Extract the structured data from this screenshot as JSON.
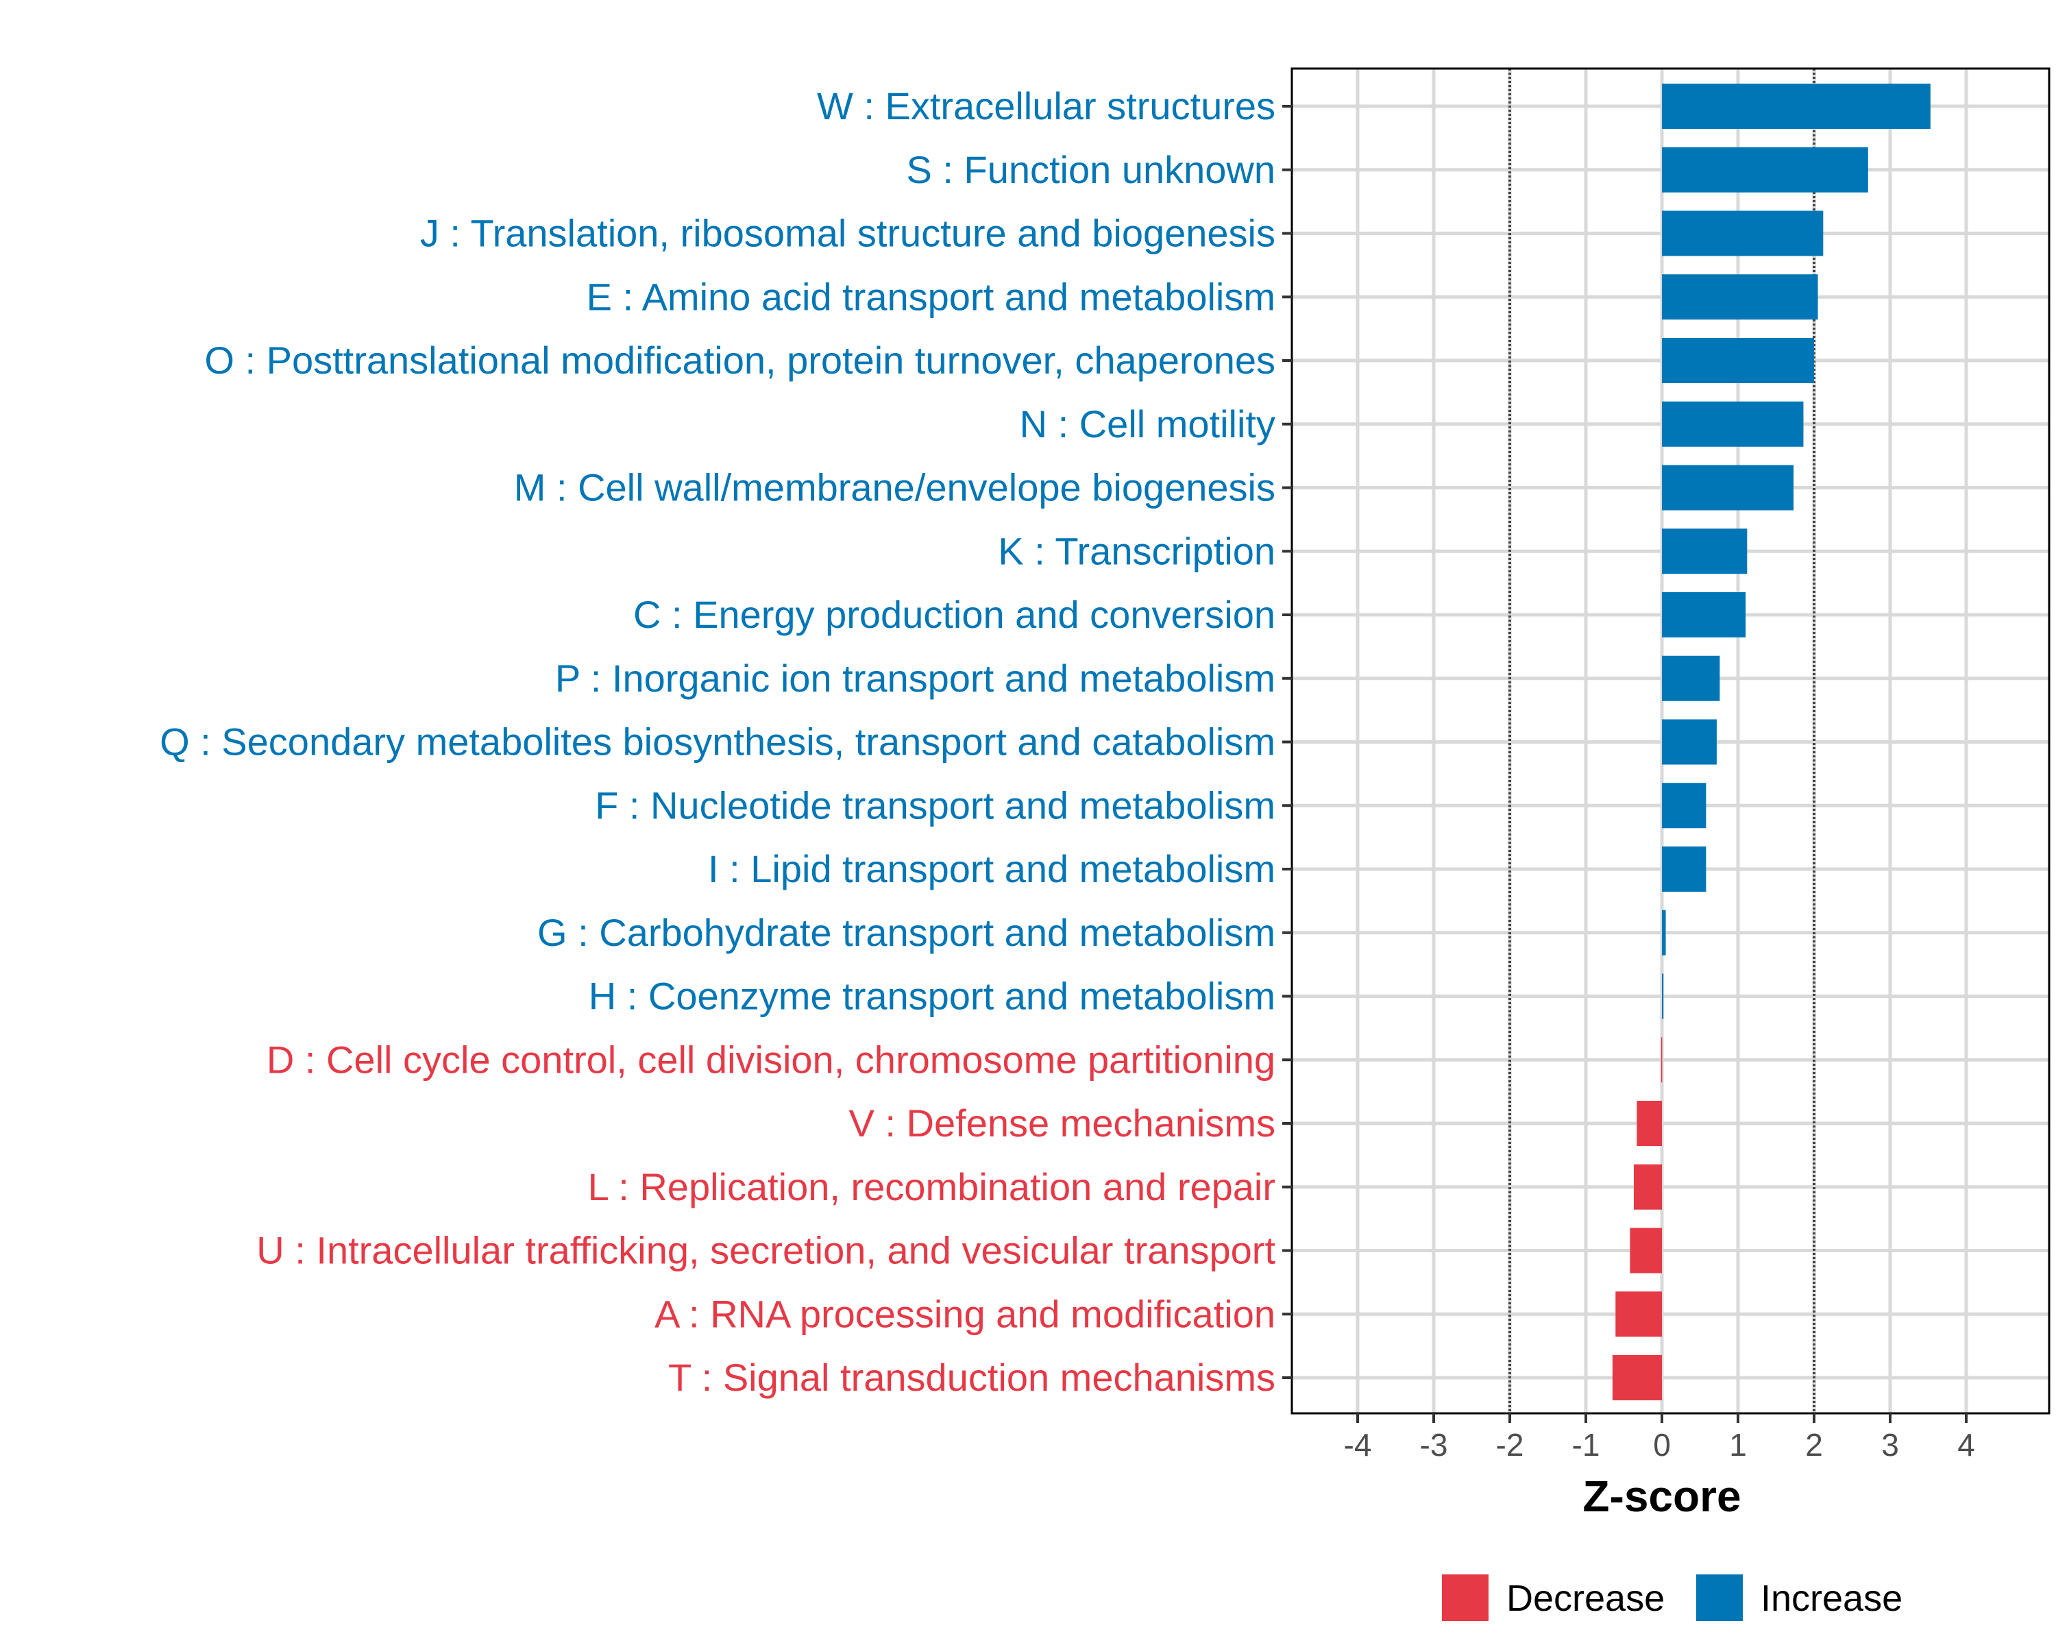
{
  "chart_data": {
    "type": "bar",
    "orientation": "horizontal",
    "title": "",
    "xlabel": "Z-score",
    "ylabel": "",
    "xlim": [
      -5,
      5
    ],
    "xticks": [
      -4,
      -3,
      -2,
      -1,
      0,
      1,
      2,
      3,
      4
    ],
    "xtick_labels": [
      "-4",
      "-3",
      "-2",
      "-1",
      "0",
      "1",
      "2",
      "3",
      "4"
    ],
    "reference_lines": [
      -2,
      2
    ],
    "grid": true,
    "categories": [
      "W : Extracellular structures",
      "S : Function unknown",
      "J : Translation, ribosomal structure and biogenesis",
      "E : Amino acid transport and metabolism",
      "O : Posttranslational modification, protein turnover, chaperones",
      "N : Cell motility",
      "M : Cell wall/membrane/envelope biogenesis",
      "K : Transcription",
      "C : Energy production and conversion",
      "P : Inorganic ion transport and metabolism",
      "Q : Secondary metabolites biosynthesis, transport and catabolism",
      "F : Nucleotide transport and metabolism",
      "I : Lipid transport and metabolism",
      "G : Carbohydrate transport and metabolism",
      "H : Coenzyme transport and metabolism",
      "D : Cell cycle control, cell division, chromosome partitioning",
      "V : Defense mechanisms",
      "L : Replication, recombination and repair",
      "U : Intracellular trafficking, secretion, and vesicular transport",
      "A : RNA processing and modification",
      "T : Signal transduction mechanisms"
    ],
    "values": [
      3.53,
      2.71,
      2.12,
      2.05,
      2.0,
      1.86,
      1.73,
      1.12,
      1.1,
      0.76,
      0.72,
      0.58,
      0.58,
      0.05,
      0.02,
      -0.01,
      -0.33,
      -0.37,
      -0.42,
      -0.61,
      -0.65
    ],
    "legend": {
      "position": "bottom",
      "entries": [
        {
          "label": "Decrease",
          "color": "#E63946"
        },
        {
          "label": "Increase",
          "color": "#0076B6"
        }
      ]
    },
    "colors": {
      "increase": "#0076B6",
      "decrease": "#E63946"
    }
  }
}
